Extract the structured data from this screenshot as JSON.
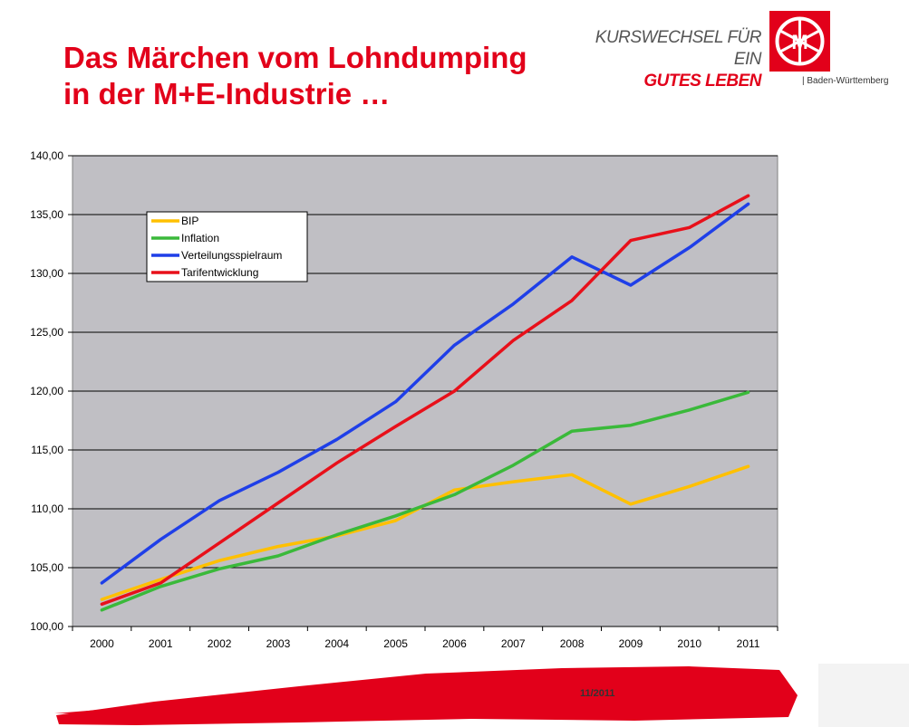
{
  "header": {
    "title_line1": "Das Märchen vom Lohndumping",
    "title_line2": "in der M+E-Industrie …",
    "slogan_line1": "KURSWECHSEL FÜR EIN",
    "slogan_line2": "GUTES LEBEN",
    "region": "| Baden-Württemberg"
  },
  "footer": {
    "date": "11/2011"
  },
  "colors": {
    "brand_red": "#e2001a",
    "plot_bg": "#c0bfc4"
  },
  "chart_data": {
    "type": "line",
    "categories": [
      "2000",
      "2001",
      "2002",
      "2003",
      "2004",
      "2005",
      "2006",
      "2007",
      "2008",
      "2009",
      "2010",
      "2011"
    ],
    "ylim": [
      100,
      140
    ],
    "yticks": [
      "100,00",
      "105,00",
      "110,00",
      "115,00",
      "120,00",
      "125,00",
      "130,00",
      "135,00",
      "140,00"
    ],
    "grid": true,
    "legend_position": "top-left",
    "series": [
      {
        "name": "BIP",
        "color": "#ffc000",
        "values": [
          102.3,
          104.0,
          105.6,
          106.8,
          107.7,
          109.0,
          111.6,
          112.3,
          112.9,
          110.4,
          111.9,
          113.6
        ]
      },
      {
        "name": "Inflation",
        "color": "#3ab93a",
        "values": [
          101.4,
          103.4,
          104.9,
          106.0,
          107.8,
          109.4,
          111.2,
          113.7,
          116.6,
          117.1,
          118.4,
          119.9
        ]
      },
      {
        "name": "Verteilungsspielraum",
        "color": "#1f3fe8",
        "values": [
          103.7,
          107.4,
          110.7,
          113.1,
          115.9,
          119.1,
          123.9,
          127.4,
          131.4,
          129.0,
          132.2,
          135.9
        ]
      },
      {
        "name": "Tarifentwicklung",
        "color": "#e8101a",
        "values": [
          101.9,
          103.7,
          107.1,
          110.5,
          113.9,
          117.0,
          120.0,
          124.3,
          127.7,
          132.8,
          133.9,
          136.6
        ]
      }
    ]
  }
}
